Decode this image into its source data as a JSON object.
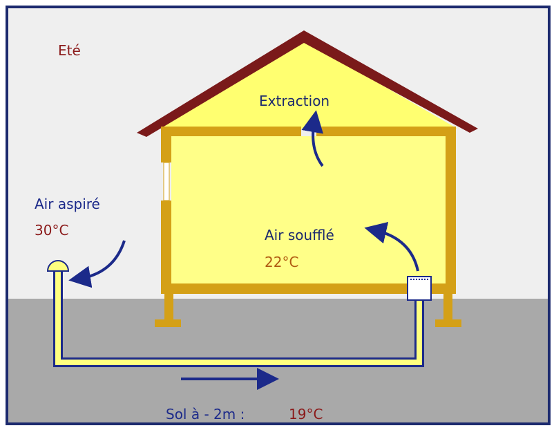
{
  "season": "Eté",
  "extraction": "Extraction",
  "intake": {
    "label": "Air aspiré",
    "temperature": "30°C"
  },
  "supply": {
    "label": "Air soufflé",
    "temperature": "22°C"
  },
  "ground": {
    "label": "Sol à - 2m :",
    "temperature": "19°C"
  }
}
